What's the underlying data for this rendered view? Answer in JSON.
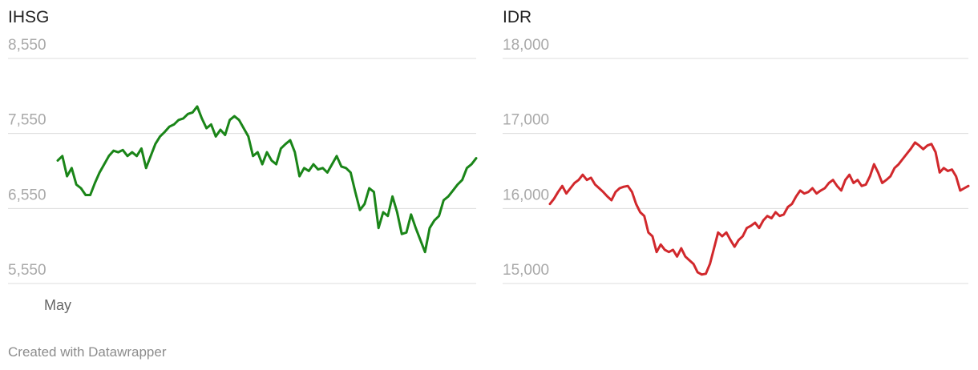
{
  "footer": "Created with Datawrapper",
  "chart_data": [
    {
      "type": "line",
      "title": "IHSG",
      "color": "#1a8518",
      "ylim": [
        5550,
        8550
      ],
      "yticks": [
        {
          "value": 5550,
          "label": "5,550"
        },
        {
          "value": 6550,
          "label": "6,550"
        },
        {
          "value": 7550,
          "label": "7,550"
        },
        {
          "value": 8550,
          "label": "8,550"
        }
      ],
      "grid": true,
      "categories": [
        "May",
        null,
        null,
        null,
        null,
        null,
        null,
        null,
        null,
        null,
        null,
        null,
        null,
        null,
        null,
        null,
        null,
        null,
        null,
        null,
        null,
        null,
        null,
        null,
        null,
        null,
        null,
        null,
        null,
        null,
        null,
        null,
        null,
        null,
        null,
        null,
        null,
        null,
        null,
        null,
        null,
        null,
        null,
        null,
        null,
        null,
        null,
        null,
        null,
        null,
        null,
        null,
        null,
        null,
        null,
        null,
        null,
        null,
        null,
        null,
        null,
        null,
        null,
        null,
        null,
        null,
        null,
        null,
        null,
        null,
        null,
        null,
        null,
        null,
        null,
        null,
        null,
        null,
        null,
        null,
        null,
        null,
        null,
        null,
        null,
        null,
        null,
        null,
        null,
        null,
        null
      ],
      "values": [
        7190,
        7250,
        6980,
        7090,
        6870,
        6820,
        6730,
        6730,
        6890,
        7030,
        7140,
        7250,
        7320,
        7300,
        7330,
        7250,
        7300,
        7250,
        7350,
        7090,
        7250,
        7410,
        7510,
        7570,
        7640,
        7670,
        7730,
        7750,
        7810,
        7830,
        7910,
        7750,
        7620,
        7670,
        7510,
        7600,
        7530,
        7730,
        7780,
        7730,
        7620,
        7510,
        7250,
        7300,
        7140,
        7300,
        7190,
        7140,
        7350,
        7410,
        7460,
        7300,
        6980,
        7090,
        7050,
        7140,
        7070,
        7090,
        7030,
        7140,
        7250,
        7110,
        7090,
        7030,
        6770,
        6530,
        6610,
        6820,
        6770,
        6290,
        6500,
        6450,
        6710,
        6500,
        6210,
        6230,
        6470,
        6290,
        6130,
        5970,
        6290,
        6390,
        6450,
        6660,
        6710,
        6790,
        6870,
        6930,
        7090,
        7140,
        7220
      ]
    },
    {
      "type": "line",
      "title": "IDR",
      "color": "#d1282c",
      "ylim": [
        15000,
        18000
      ],
      "yticks": [
        {
          "value": 15000,
          "label": "15,000"
        },
        {
          "value": 16000,
          "label": "16,000"
        },
        {
          "value": 17000,
          "label": "17,000"
        },
        {
          "value": 18000,
          "label": "18,000"
        }
      ],
      "grid": true,
      "values": [
        16060,
        16130,
        16220,
        16300,
        16200,
        16270,
        16340,
        16380,
        16450,
        16380,
        16410,
        16320,
        16270,
        16220,
        16160,
        16110,
        16220,
        16270,
        16290,
        16300,
        16220,
        16060,
        15950,
        15900,
        15680,
        15630,
        15420,
        15520,
        15450,
        15420,
        15450,
        15360,
        15470,
        15360,
        15310,
        15260,
        15150,
        15120,
        15130,
        15260,
        15470,
        15680,
        15630,
        15680,
        15580,
        15490,
        15580,
        15630,
        15740,
        15770,
        15810,
        15740,
        15840,
        15900,
        15870,
        15950,
        15900,
        15920,
        16020,
        16060,
        16160,
        16240,
        16200,
        16220,
        16270,
        16200,
        16240,
        16270,
        16340,
        16380,
        16300,
        16240,
        16380,
        16450,
        16340,
        16380,
        16300,
        16320,
        16430,
        16590,
        16480,
        16340,
        16380,
        16430,
        16540,
        16590,
        16660,
        16730,
        16800,
        16880,
        16840,
        16790,
        16840,
        16860,
        16750,
        16480,
        16540,
        16500,
        16520,
        16430,
        16240,
        16270,
        16300
      ]
    }
  ]
}
